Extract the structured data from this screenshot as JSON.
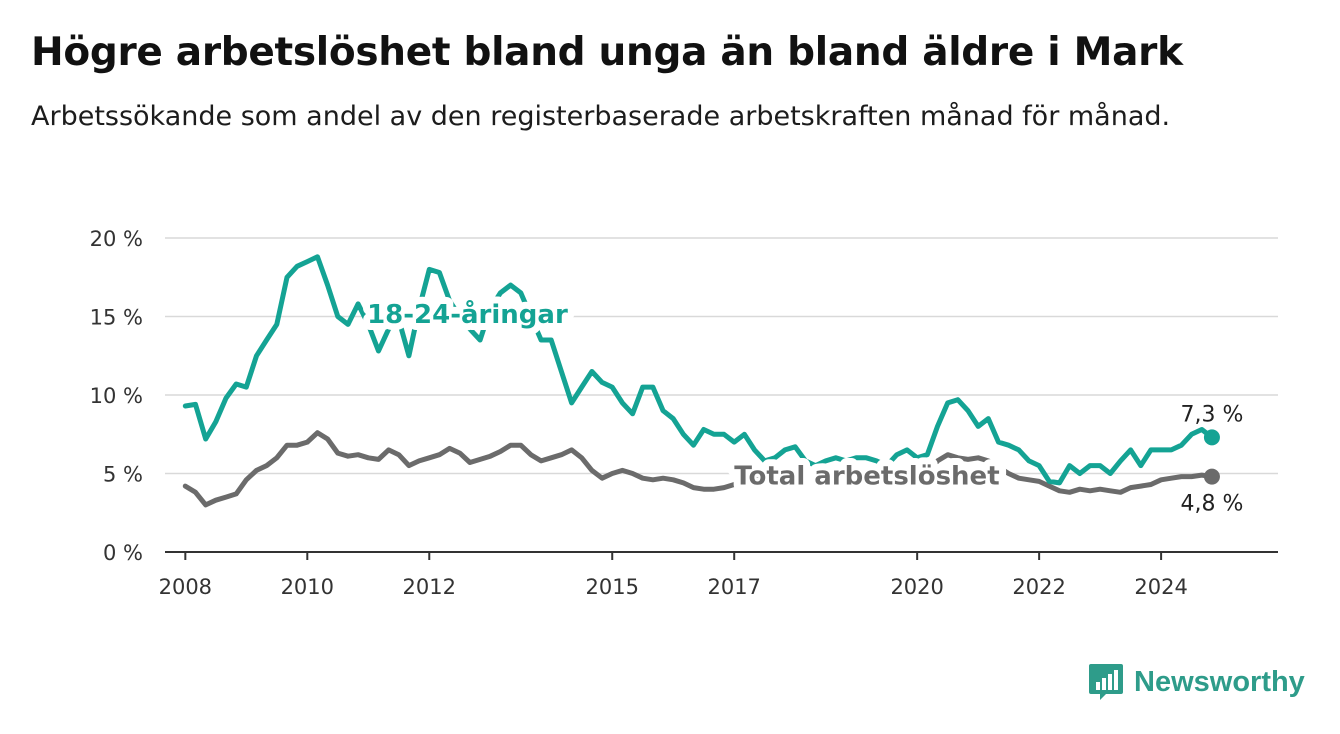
{
  "title": "Högre arbetslöshet bland unga än bland äldre i Mark",
  "subtitle": "Arbetssökande som andel av den registerbaserade arbetskraften månad för månad.",
  "branding": {
    "name": "Newsworthy",
    "icon": "newsworthy-logo-icon",
    "color": "#2e9c8a"
  },
  "chart_data": {
    "type": "line",
    "x_ticks": [
      "2008",
      "2010",
      "2012",
      "2015",
      "2017",
      "2020",
      "2022",
      "2024"
    ],
    "y_ticks": [
      "0 %",
      "5 %",
      "10 %",
      "15 %",
      "20 %"
    ],
    "ylim": [
      0,
      20
    ],
    "xlim": [
      "2007-09",
      "2025-12"
    ],
    "grid": true,
    "series": [
      {
        "name": "18-24-åringar",
        "color": "#14a394",
        "end_label": "7,3 %",
        "x": [
          "2008-01",
          "2008-03",
          "2008-05",
          "2008-07",
          "2008-09",
          "2008-11",
          "2009-01",
          "2009-03",
          "2009-05",
          "2009-07",
          "2009-09",
          "2009-11",
          "2010-01",
          "2010-03",
          "2010-05",
          "2010-07",
          "2010-09",
          "2010-11",
          "2011-01",
          "2011-03",
          "2011-05",
          "2011-07",
          "2011-09",
          "2011-11",
          "2012-01",
          "2012-03",
          "2012-05",
          "2012-07",
          "2012-09",
          "2012-11",
          "2013-01",
          "2013-03",
          "2013-05",
          "2013-07",
          "2013-09",
          "2013-11",
          "2014-01",
          "2014-03",
          "2014-05",
          "2014-07",
          "2014-09",
          "2014-11",
          "2015-01",
          "2015-03",
          "2015-05",
          "2015-07",
          "2015-09",
          "2015-11",
          "2016-01",
          "2016-03",
          "2016-05",
          "2016-07",
          "2016-09",
          "2016-11",
          "2017-01",
          "2017-03",
          "2017-05",
          "2017-07",
          "2017-09",
          "2017-11",
          "2018-01",
          "2018-03",
          "2018-05",
          "2018-07",
          "2018-09",
          "2018-11",
          "2019-01",
          "2019-03",
          "2019-05",
          "2019-07",
          "2019-09",
          "2019-11",
          "2020-01",
          "2020-03",
          "2020-05",
          "2020-07",
          "2020-09",
          "2020-11",
          "2021-01",
          "2021-03",
          "2021-05",
          "2021-07",
          "2021-09",
          "2021-11",
          "2022-01",
          "2022-03",
          "2022-05",
          "2022-07",
          "2022-09",
          "2022-11",
          "2023-01",
          "2023-03",
          "2023-05",
          "2023-07",
          "2023-09",
          "2023-11",
          "2024-01",
          "2024-03",
          "2024-05",
          "2024-07",
          "2024-09",
          "2024-11"
        ],
        "values": [
          9.3,
          9.4,
          7.2,
          8.3,
          9.8,
          10.7,
          10.5,
          12.5,
          13.5,
          14.5,
          17.5,
          18.2,
          18.5,
          18.8,
          17.0,
          15.0,
          14.5,
          15.8,
          14.5,
          12.8,
          14.2,
          14.8,
          12.5,
          15.5,
          18.0,
          17.8,
          16.0,
          15.0,
          14.2,
          13.5,
          15.5,
          16.5,
          17.0,
          16.5,
          15.0,
          13.5,
          13.5,
          11.5,
          9.5,
          10.5,
          11.5,
          10.8,
          10.5,
          9.5,
          8.8,
          10.5,
          10.5,
          9.0,
          8.5,
          7.5,
          6.8,
          7.8,
          7.5,
          7.5,
          7.0,
          7.5,
          6.5,
          5.8,
          6.0,
          6.5,
          6.7,
          5.8,
          5.5,
          5.8,
          6.0,
          5.8,
          6.0,
          6.0,
          5.8,
          5.5,
          6.2,
          6.5,
          6.0,
          6.2,
          8.0,
          9.5,
          9.7,
          9.0,
          8.0,
          8.5,
          7.0,
          6.8,
          6.5,
          5.8,
          5.5,
          4.5,
          4.4,
          5.5,
          5.0,
          5.5,
          5.5,
          5.0,
          5.8,
          6.5,
          5.5,
          6.5,
          6.5,
          6.5,
          6.8,
          7.5,
          7.8,
          7.3
        ]
      },
      {
        "name": "Total arbetslöshet",
        "color": "#6b6b6b",
        "end_label": "4,8 %",
        "x": [
          "2008-01",
          "2008-03",
          "2008-05",
          "2008-07",
          "2008-09",
          "2008-11",
          "2009-01",
          "2009-03",
          "2009-05",
          "2009-07",
          "2009-09",
          "2009-11",
          "2010-01",
          "2010-03",
          "2010-05",
          "2010-07",
          "2010-09",
          "2010-11",
          "2011-01",
          "2011-03",
          "2011-05",
          "2011-07",
          "2011-09",
          "2011-11",
          "2012-01",
          "2012-03",
          "2012-05",
          "2012-07",
          "2012-09",
          "2012-11",
          "2013-01",
          "2013-03",
          "2013-05",
          "2013-07",
          "2013-09",
          "2013-11",
          "2014-01",
          "2014-03",
          "2014-05",
          "2014-07",
          "2014-09",
          "2014-11",
          "2015-01",
          "2015-03",
          "2015-05",
          "2015-07",
          "2015-09",
          "2015-11",
          "2016-01",
          "2016-03",
          "2016-05",
          "2016-07",
          "2016-09",
          "2016-11",
          "2017-01",
          "2017-03",
          "2017-05",
          "2017-07",
          "2017-09",
          "2017-11",
          "2018-01",
          "2018-03",
          "2018-05",
          "2018-07",
          "2018-09",
          "2018-11",
          "2019-01",
          "2019-03",
          "2019-05",
          "2019-07",
          "2019-09",
          "2019-11",
          "2020-01",
          "2020-03",
          "2020-05",
          "2020-07",
          "2020-09",
          "2020-11",
          "2021-01",
          "2021-03",
          "2021-05",
          "2021-07",
          "2021-09",
          "2021-11",
          "2022-01",
          "2022-03",
          "2022-05",
          "2022-07",
          "2022-09",
          "2022-11",
          "2023-01",
          "2023-03",
          "2023-05",
          "2023-07",
          "2023-09",
          "2023-11",
          "2024-01",
          "2024-03",
          "2024-05",
          "2024-07",
          "2024-09",
          "2024-11"
        ],
        "values": [
          4.2,
          3.8,
          3.0,
          3.3,
          3.5,
          3.7,
          4.6,
          5.2,
          5.5,
          6.0,
          6.8,
          6.8,
          7.0,
          7.6,
          7.2,
          6.3,
          6.1,
          6.2,
          6.0,
          5.9,
          6.5,
          6.2,
          5.5,
          5.8,
          6.0,
          6.2,
          6.6,
          6.3,
          5.7,
          5.9,
          6.1,
          6.4,
          6.8,
          6.8,
          6.2,
          5.8,
          6.0,
          6.2,
          6.5,
          6.0,
          5.2,
          4.7,
          5.0,
          5.2,
          5.0,
          4.7,
          4.6,
          4.7,
          4.6,
          4.4,
          4.1,
          4.0,
          4.0,
          4.1,
          4.3,
          4.6,
          4.7,
          4.6,
          4.5,
          4.6,
          4.7,
          4.7,
          4.6,
          4.6,
          4.7,
          4.6,
          4.6,
          4.8,
          4.7,
          4.6,
          4.8,
          4.9,
          4.8,
          5.0,
          5.8,
          6.2,
          6.0,
          5.9,
          6.0,
          5.8,
          5.4,
          5.0,
          4.7,
          4.6,
          4.5,
          4.2,
          3.9,
          3.8,
          4.0,
          3.9,
          4.0,
          3.9,
          3.8,
          4.1,
          4.2,
          4.3,
          4.6,
          4.7,
          4.8,
          4.8,
          4.9,
          4.8
        ]
      }
    ]
  }
}
